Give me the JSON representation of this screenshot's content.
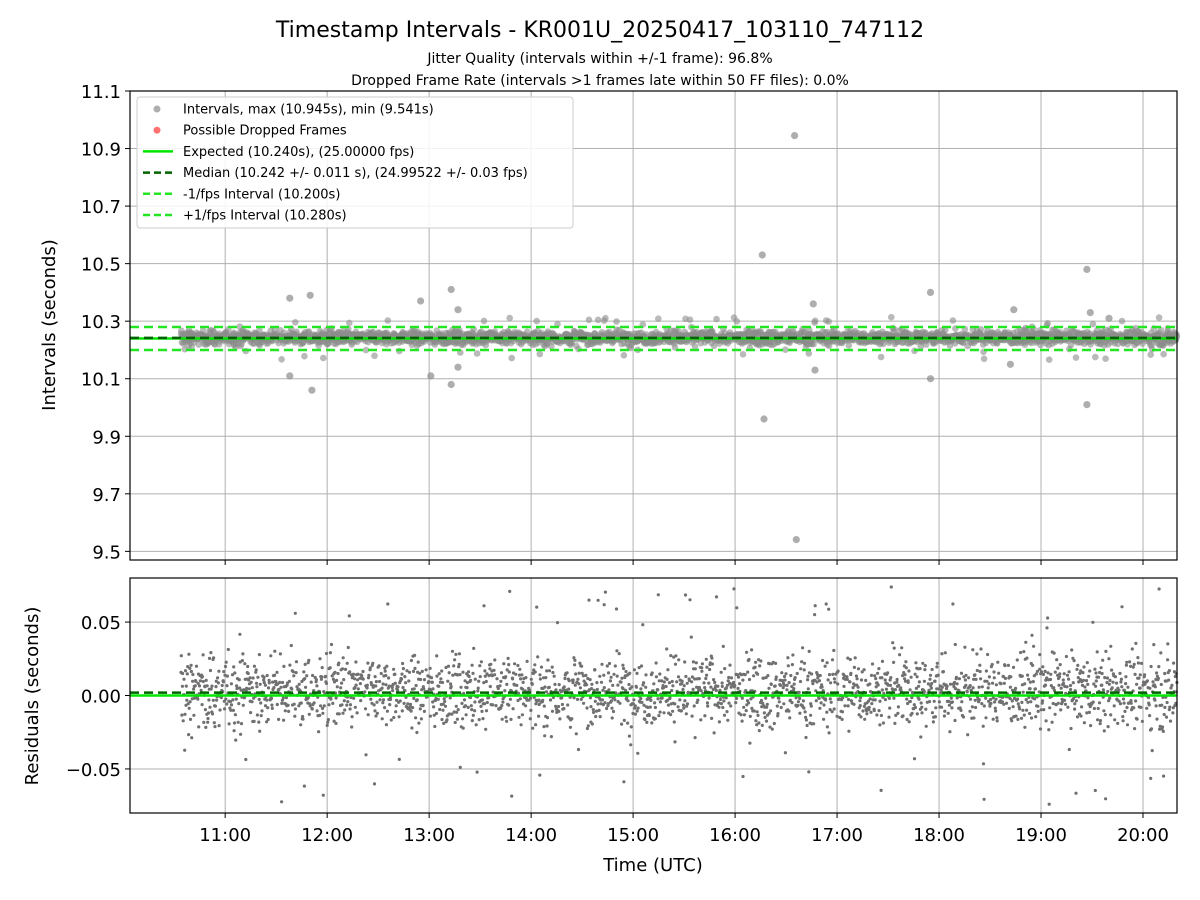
{
  "figure": {
    "title": "Timestamp Intervals - KR001U_20250417_103110_747112",
    "subtitle_1": "Jitter Quality (intervals within +/-1 frame): 96.8%",
    "subtitle_2": "Dropped Frame Rate (intervals >1 frames late within 50 FF files): 0.0%",
    "xlabel": "Time (UTC)"
  },
  "chart_data": [
    {
      "type": "scatter",
      "panel": "intervals",
      "ylabel": "Intervals (seconds)",
      "xlim": [
        "10:04",
        "20:20"
      ],
      "ylim": [
        9.47,
        11.1
      ],
      "x_ticks": [
        "11:00",
        "12:00",
        "13:00",
        "14:00",
        "15:00",
        "16:00",
        "17:00",
        "18:00",
        "19:00",
        "20:00"
      ],
      "y_ticks": [
        "9.5",
        "9.7",
        "9.9",
        "10.1",
        "10.3",
        "10.5",
        "10.7",
        "10.9",
        "11.1"
      ],
      "grid": true,
      "legend_position": "top-left",
      "legend": [
        {
          "label": "Intervals, max (10.945s), min (9.541s)",
          "style": "gray-dot"
        },
        {
          "label": "Possible Dropped Frames",
          "style": "red-dot"
        },
        {
          "label": "Expected (10.240s), (25.00000 fps)",
          "style": "green-solid"
        },
        {
          "label": "Median (10.242 +/- 0.011 s), (24.99522 +/- 0.03 fps)",
          "style": "darkgreen-dashed"
        },
        {
          "label": "-1/fps Interval (10.200s)",
          "style": "green-dashed"
        },
        {
          "label": "+1/fps Interval (10.280s)",
          "style": "green-dashed"
        }
      ],
      "reference_lines": {
        "expected": 10.24,
        "median": 10.242,
        "minus_1fps": 10.2,
        "plus_1fps": 10.28
      },
      "series_range": {
        "x_start": "10:34",
        "x_end": "20:20",
        "y_center": 10.24
      },
      "outliers": [
        {
          "x": "11:38",
          "y": 10.38
        },
        {
          "x": "11:38",
          "y": 10.11
        },
        {
          "x": "11:50",
          "y": 10.39
        },
        {
          "x": "11:51",
          "y": 10.06
        },
        {
          "x": "12:55",
          "y": 10.37
        },
        {
          "x": "13:01",
          "y": 10.11
        },
        {
          "x": "13:13",
          "y": 10.41
        },
        {
          "x": "13:13",
          "y": 10.08
        },
        {
          "x": "13:17",
          "y": 10.34
        },
        {
          "x": "13:17",
          "y": 10.14
        },
        {
          "x": "16:16",
          "y": 10.53
        },
        {
          "x": "16:17",
          "y": 9.96
        },
        {
          "x": "16:35",
          "y": 10.945
        },
        {
          "x": "16:36",
          "y": 9.541
        },
        {
          "x": "16:46",
          "y": 10.36
        },
        {
          "x": "16:47",
          "y": 10.13
        },
        {
          "x": "17:55",
          "y": 10.4
        },
        {
          "x": "17:55",
          "y": 10.1
        },
        {
          "x": "18:44",
          "y": 10.34
        },
        {
          "x": "18:42",
          "y": 10.15
        },
        {
          "x": "19:27",
          "y": 10.48
        },
        {
          "x": "19:27",
          "y": 10.01
        },
        {
          "x": "19:29",
          "y": 10.33
        },
        {
          "x": "19:40",
          "y": 10.31
        }
      ]
    },
    {
      "type": "scatter",
      "panel": "residuals",
      "ylabel": "Residuals (seconds)",
      "xlim": [
        "10:04",
        "20:20"
      ],
      "ylim": [
        -0.08,
        0.08
      ],
      "y_ticks": [
        "−0.05",
        "0.00",
        "0.05"
      ],
      "grid": true,
      "reference_lines": {
        "expected": 0.0,
        "median": 0.002
      },
      "series_range": {
        "x_start": "10:34",
        "x_end": "20:20",
        "y_center": 0.0
      }
    }
  ]
}
